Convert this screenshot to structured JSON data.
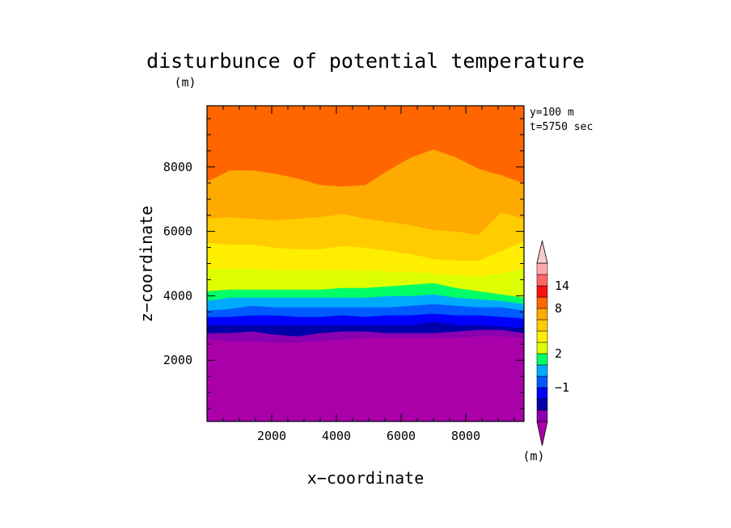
{
  "chart_data": {
    "type": "contour",
    "title": "disturbunce of potential temperature",
    "yunit": "(m)",
    "colorbar_unit": "(m)",
    "xlabel": "x−coordinate",
    "ylabel": "z−coordinate",
    "annotations": [
      "y=100 m",
      "t=5750 sec"
    ],
    "xlim": [
      0,
      9800
    ],
    "ylim": [
      100,
      9900
    ],
    "xticks": [
      2000,
      4000,
      6000,
      8000
    ],
    "xtick_labels": [
      "2000",
      "4000",
      "6000",
      "8000"
    ],
    "yticks": [
      2000,
      4000,
      6000,
      8000
    ],
    "ytick_labels": [
      "2000",
      "4000",
      "6000",
      "8000"
    ],
    "x_samples": [
      0,
      700,
      1400,
      2100,
      2800,
      3500,
      4200,
      4900,
      5600,
      6300,
      7000,
      7700,
      8400,
      9100,
      9800
    ],
    "levels": [
      {
        "color": "#aa00aa",
        "z": null
      },
      {
        "color": "#8a00b0",
        "z": [
          2650,
          2600,
          2600,
          2550,
          2550,
          2600,
          2650,
          2700,
          2700,
          2700,
          2700,
          2700,
          2750,
          2750,
          2700
        ]
      },
      {
        "color": "#0000aa",
        "z": [
          2850,
          2850,
          2900,
          2800,
          2750,
          2850,
          2900,
          2900,
          2850,
          2850,
          2850,
          2900,
          2950,
          2950,
          2850
        ]
      },
      {
        "color": "#0000ff",
        "z": [
          3100,
          3100,
          3100,
          3100,
          3100,
          3100,
          3100,
          3100,
          3100,
          3100,
          3200,
          3100,
          3100,
          3050,
          3000
        ]
      },
      {
        "color": "#005aff",
        "z": [
          3350,
          3350,
          3400,
          3400,
          3350,
          3350,
          3400,
          3350,
          3400,
          3400,
          3450,
          3400,
          3400,
          3350,
          3300
        ]
      },
      {
        "color": "#00aaff",
        "z": [
          3550,
          3600,
          3700,
          3650,
          3650,
          3650,
          3650,
          3650,
          3650,
          3700,
          3750,
          3700,
          3650,
          3650,
          3550
        ]
      },
      {
        "color": "#00ff66",
        "z": [
          3850,
          3950,
          3950,
          3950,
          3950,
          3950,
          3950,
          3950,
          4000,
          4000,
          4050,
          3950,
          3900,
          3850,
          3750
        ]
      },
      {
        "color": "#ddff00",
        "z": [
          4150,
          4200,
          4200,
          4200,
          4200,
          4200,
          4250,
          4250,
          4300,
          4350,
          4400,
          4250,
          4150,
          4050,
          3950
        ]
      },
      {
        "color": "#ffee00",
        "z": [
          4850,
          4850,
          4850,
          4800,
          4800,
          4800,
          4800,
          4800,
          4750,
          4750,
          4700,
          4650,
          4600,
          4700,
          4850
        ]
      },
      {
        "color": "#ffcc00",
        "z": [
          5650,
          5600,
          5600,
          5500,
          5450,
          5450,
          5550,
          5500,
          5400,
          5300,
          5150,
          5100,
          5100,
          5400,
          5700
        ]
      },
      {
        "color": "#ffaa00",
        "z": [
          6400,
          6450,
          6400,
          6350,
          6400,
          6450,
          6550,
          6400,
          6300,
          6200,
          6050,
          6000,
          5900,
          6600,
          6400
        ]
      },
      {
        "color": "#ff6600",
        "z": [
          7550,
          7900,
          7900,
          7800,
          7650,
          7450,
          7400,
          7450,
          7900,
          8300,
          8550,
          8300,
          7950,
          7750,
          7500
        ]
      },
      {
        "color": "#ff1111",
        "z": [
          9900,
          9900,
          9900,
          9900,
          9900,
          9900,
          9900,
          9900,
          9900,
          9900,
          9900,
          9900,
          9900,
          9900,
          9900
        ]
      }
    ],
    "colorbar": {
      "colors": [
        "#aa00aa",
        "#8a00b0",
        "#0000aa",
        "#0000ff",
        "#005aff",
        "#00aaff",
        "#00ff66",
        "#ddff00",
        "#ffee00",
        "#ffcc00",
        "#ffaa00",
        "#ff6600",
        "#ff1111",
        "#ff6666",
        "#ffaaaa",
        "#ffcccc"
      ],
      "labels": [
        {
          "text": "−1",
          "boundary": 4
        },
        {
          "text": "2",
          "boundary": 7
        },
        {
          "text": "8",
          "boundary": 11
        },
        {
          "text": "14",
          "boundary": 13
        }
      ]
    }
  }
}
